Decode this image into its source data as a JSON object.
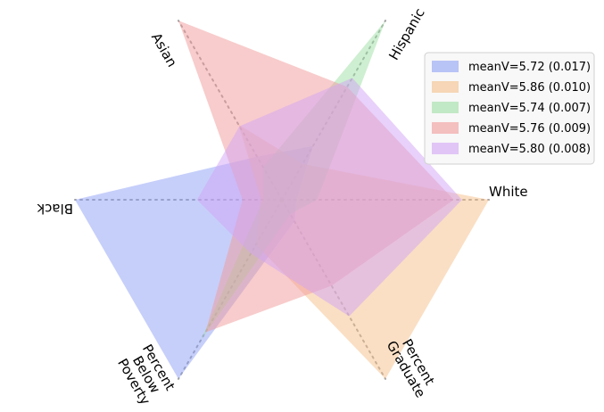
{
  "chart_data": {
    "type": "radar",
    "axes": [
      {
        "label": "White",
        "angle_deg": 0
      },
      {
        "label": "Hispanic",
        "angle_deg": 60
      },
      {
        "label": "Asian",
        "angle_deg": 120
      },
      {
        "label": "Black",
        "angle_deg": 180
      },
      {
        "label": "Percent Below Poverty",
        "angle_deg": 240
      },
      {
        "label": "Percent Graduate",
        "angle_deg": 300
      }
    ],
    "rmax": 1.0,
    "grid": false,
    "legend_position": "top-right",
    "series": [
      {
        "name": "meanV=5.72 (0.017)",
        "color": "#8da0f5",
        "values": [
          0.07,
          0.3,
          0.24,
          1.0,
          1.0,
          0.12
        ]
      },
      {
        "name": "meanV=5.86 (0.010)",
        "color": "#f5bf8a",
        "values": [
          1.0,
          0.2,
          0.42,
          0.1,
          0.25,
          1.0
        ]
      },
      {
        "name": "meanV=5.74 (0.007)",
        "color": "#9ee0a3",
        "values": [
          0.17,
          1.0,
          0.18,
          0.09,
          0.78,
          0.08
        ]
      },
      {
        "name": "meanV=5.76 (0.009)",
        "color": "#f29a9a",
        "values": [
          0.83,
          0.63,
          1.0,
          0.19,
          0.74,
          0.48
        ]
      },
      {
        "name": "meanV=5.80 (0.008)",
        "color": "#d2a3f5",
        "values": [
          0.87,
          0.68,
          0.41,
          0.41,
          0.3,
          0.65
        ]
      }
    ]
  }
}
